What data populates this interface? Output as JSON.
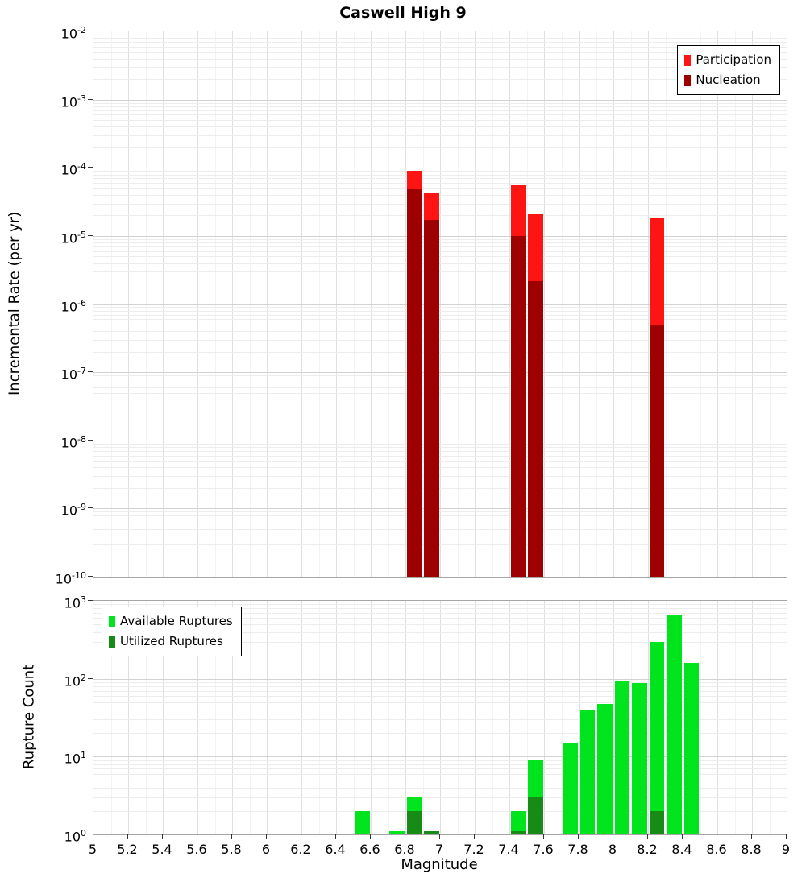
{
  "title": "Caswell High 9",
  "colors": {
    "participation": "#ff1414",
    "nucleation": "#9e0000",
    "available": "#00e41e",
    "utilized": "#168c16",
    "grid_major_h": "#d2d2d2",
    "grid_minor_h": "#ececec",
    "grid_major_v": "#dfdfdf",
    "grid_minor_v": "#f3f3f3",
    "plot_border": "#a6a6a6",
    "tick": "#333333"
  },
  "chart_data": [
    {
      "type": "bar",
      "title": "Caswell High 9",
      "ylabel": "Incremental Rate (per yr)",
      "xlabel": "",
      "yscale": "log",
      "ylim": [
        1e-10,
        0.01
      ],
      "xlim": [
        5,
        9
      ],
      "ytick_exponents": [
        -2,
        -3,
        -4,
        -5,
        -6,
        -7,
        -8,
        -9,
        -10
      ],
      "bar_width": 0.1,
      "grid": true,
      "legend_position": "top-right",
      "legend": [
        {
          "label": "Participation",
          "color_key": "participation"
        },
        {
          "label": "Nucleation",
          "color_key": "nucleation"
        }
      ],
      "series": [
        {
          "name": "Participation",
          "color_key": "participation",
          "points": [
            {
              "x": 6.85,
              "y": 9e-05
            },
            {
              "x": 6.95,
              "y": 4.3e-05
            },
            {
              "x": 7.45,
              "y": 5.5e-05
            },
            {
              "x": 7.55,
              "y": 2.1e-05
            },
            {
              "x": 8.25,
              "y": 1.8e-05
            }
          ]
        },
        {
          "name": "Nucleation",
          "color_key": "nucleation",
          "points": [
            {
              "x": 6.85,
              "y": 4.8e-05
            },
            {
              "x": 6.95,
              "y": 1.7e-05
            },
            {
              "x": 7.45,
              "y": 1e-05
            },
            {
              "x": 7.55,
              "y": 2.2e-06
            },
            {
              "x": 8.25,
              "y": 5e-07
            }
          ]
        }
      ]
    },
    {
      "type": "bar",
      "title": "",
      "ylabel": "Rupture Count",
      "xlabel": "Magnitude",
      "yscale": "log",
      "ylim": [
        1,
        1000
      ],
      "xlim": [
        5,
        9
      ],
      "ytick_exponents": [
        0,
        1,
        2,
        3
      ],
      "xtick_labels": [
        "5",
        "5.2",
        "5.4",
        "5.6",
        "5.8",
        "6",
        "6.2",
        "6.4",
        "6.6",
        "6.8",
        "7",
        "7.2",
        "7.4",
        "7.6",
        "7.8",
        "8",
        "8.2",
        "8.4",
        "8.6",
        "8.8",
        "9"
      ],
      "bar_width": 0.1,
      "grid": true,
      "legend_position": "top-left",
      "legend": [
        {
          "label": "Available Ruptures",
          "color_key": "available"
        },
        {
          "label": "Utilized Ruptures",
          "color_key": "utilized"
        }
      ],
      "series": [
        {
          "name": "Available Ruptures",
          "color_key": "available",
          "points": [
            {
              "x": 6.55,
              "y": 2
            },
            {
              "x": 6.75,
              "y": 1.1
            },
            {
              "x": 6.85,
              "y": 3
            },
            {
              "x": 6.95,
              "y": 1.1
            },
            {
              "x": 7.45,
              "y": 2
            },
            {
              "x": 7.55,
              "y": 9
            },
            {
              "x": 7.75,
              "y": 15
            },
            {
              "x": 7.85,
              "y": 40
            },
            {
              "x": 7.95,
              "y": 48
            },
            {
              "x": 8.05,
              "y": 92
            },
            {
              "x": 8.15,
              "y": 88
            },
            {
              "x": 8.25,
              "y": 300
            },
            {
              "x": 8.35,
              "y": 650
            },
            {
              "x": 8.45,
              "y": 160
            }
          ]
        },
        {
          "name": "Utilized Ruptures",
          "color_key": "utilized",
          "points": [
            {
              "x": 6.85,
              "y": 2
            },
            {
              "x": 6.95,
              "y": 1.1
            },
            {
              "x": 7.45,
              "y": 1.1
            },
            {
              "x": 7.55,
              "y": 3
            },
            {
              "x": 8.25,
              "y": 2
            }
          ]
        }
      ]
    }
  ]
}
